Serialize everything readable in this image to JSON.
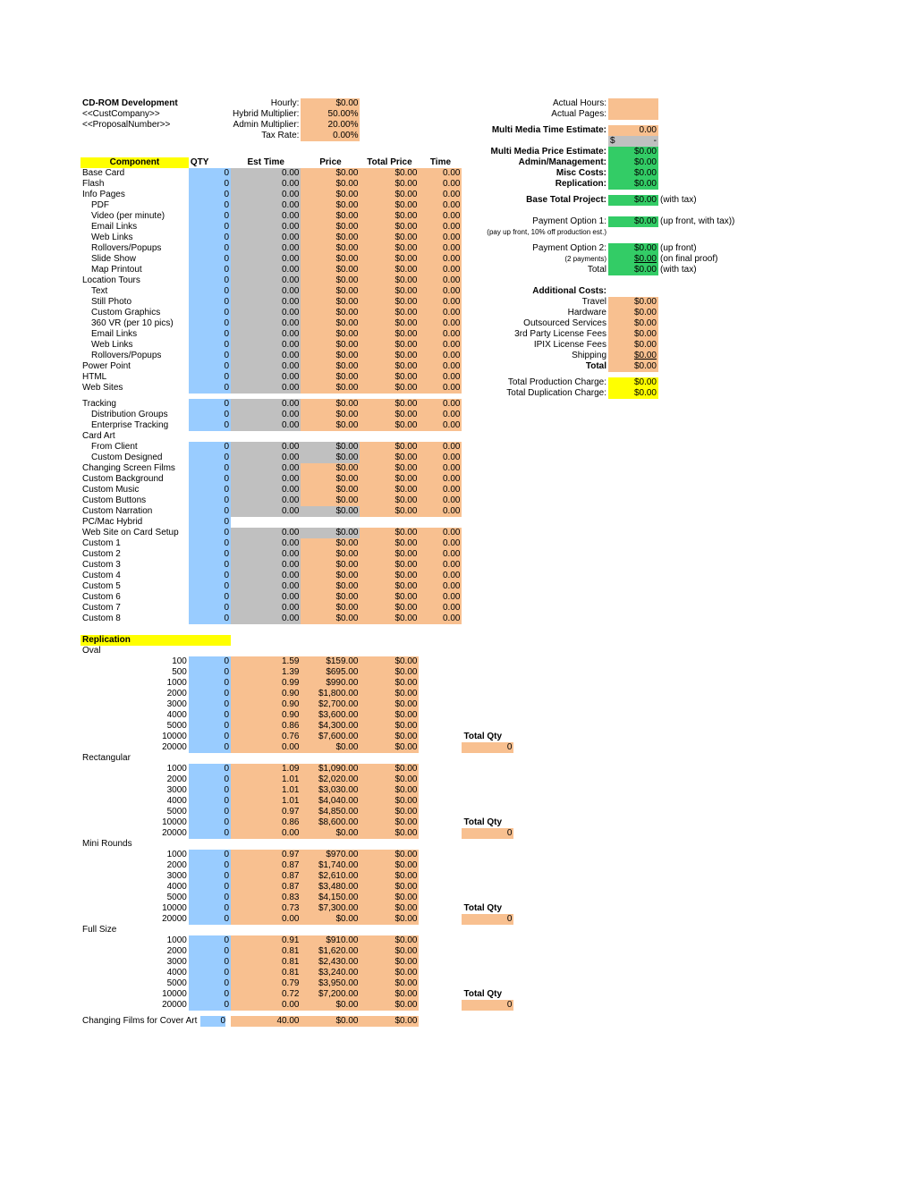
{
  "colors": {
    "yellow": "#ffff00",
    "salmon": "#f8c090",
    "blue": "#99ccff",
    "gray": "#c0c0c0",
    "green": "#33cc66",
    "white": "#ffffff"
  },
  "header": {
    "title": "CD-ROM Development",
    "cust": "<<CustCompany>>",
    "prop": "<<ProposalNumber>>",
    "labels": {
      "hourly": "Hourly:",
      "hybrid": "Hybrid Multiplier:",
      "admin": "Admin Multiplier:",
      "tax": "Tax Rate:"
    },
    "values": {
      "hourly": "$0.00",
      "hybrid": "50.00%",
      "admin": "20.00%",
      "tax": "0.00%"
    }
  },
  "columns": {
    "component": "Component",
    "qty": "QTY",
    "est": "Est Time",
    "price": "Price",
    "total": "Total Price",
    "time": "Time"
  },
  "rows": [
    {
      "n": "Base Card",
      "q": "0",
      "e": "0.00",
      "p": "$0.00",
      "t": "$0.00",
      "ti": "0.00",
      "pc": "salmon",
      "tc": "salmon"
    },
    {
      "n": "Flash",
      "q": "0",
      "e": "0.00",
      "p": "$0.00",
      "t": "$0.00",
      "ti": "0.00",
      "pc": "salmon",
      "tc": "salmon"
    },
    {
      "n": "Info Pages",
      "q": "0",
      "e": "0.00",
      "p": "$0.00",
      "t": "$0.00",
      "ti": "0.00",
      "pc": "salmon",
      "tc": "salmon"
    },
    {
      "n": "PDF",
      "i": 1,
      "q": "0",
      "e": "0.00",
      "p": "$0.00",
      "t": "$0.00",
      "ti": "0.00",
      "pc": "salmon",
      "tc": "salmon"
    },
    {
      "n": "Video (per minute)",
      "i": 1,
      "q": "0",
      "e": "0.00",
      "p": "$0.00",
      "t": "$0.00",
      "ti": "0.00",
      "pc": "salmon",
      "tc": "salmon"
    },
    {
      "n": "Email Links",
      "i": 1,
      "q": "0",
      "e": "0.00",
      "p": "$0.00",
      "t": "$0.00",
      "ti": "0.00",
      "pc": "salmon",
      "tc": "salmon"
    },
    {
      "n": "Web Links",
      "i": 1,
      "q": "0",
      "e": "0.00",
      "p": "$0.00",
      "t": "$0.00",
      "ti": "0.00",
      "pc": "salmon",
      "tc": "salmon"
    },
    {
      "n": "Rollovers/Popups",
      "i": 1,
      "q": "0",
      "e": "0.00",
      "p": "$0.00",
      "t": "$0.00",
      "ti": "0.00",
      "pc": "salmon",
      "tc": "salmon"
    },
    {
      "n": "Slide Show",
      "i": 1,
      "q": "0",
      "e": "0.00",
      "p": "$0.00",
      "t": "$0.00",
      "ti": "0.00",
      "pc": "salmon",
      "tc": "salmon"
    },
    {
      "n": "Map Printout",
      "i": 1,
      "q": "0",
      "e": "0.00",
      "p": "$0.00",
      "t": "$0.00",
      "ti": "0.00",
      "pc": "salmon",
      "tc": "salmon"
    },
    {
      "n": "Location Tours",
      "q": "0",
      "e": "0.00",
      "p": "$0.00",
      "t": "$0.00",
      "ti": "0.00",
      "pc": "salmon",
      "tc": "salmon"
    },
    {
      "n": "Text",
      "i": 1,
      "q": "0",
      "e": "0.00",
      "p": "$0.00",
      "t": "$0.00",
      "ti": "0.00",
      "pc": "salmon",
      "tc": "salmon"
    },
    {
      "n": "Still Photo",
      "i": 1,
      "q": "0",
      "e": "0.00",
      "p": "$0.00",
      "t": "$0.00",
      "ti": "0.00",
      "pc": "salmon",
      "tc": "salmon"
    },
    {
      "n": "Custom Graphics",
      "i": 1,
      "q": "0",
      "e": "0.00",
      "p": "$0.00",
      "t": "$0.00",
      "ti": "0.00",
      "pc": "salmon",
      "tc": "salmon"
    },
    {
      "n": "360 VR (per 10 pics)",
      "i": 1,
      "q": "0",
      "e": "0.00",
      "p": "$0.00",
      "t": "$0.00",
      "ti": "0.00",
      "pc": "salmon",
      "tc": "salmon"
    },
    {
      "n": "Email Links",
      "i": 1,
      "q": "0",
      "e": "0.00",
      "p": "$0.00",
      "t": "$0.00",
      "ti": "0.00",
      "pc": "salmon",
      "tc": "salmon"
    },
    {
      "n": "Web Links",
      "i": 1,
      "q": "0",
      "e": "0.00",
      "p": "$0.00",
      "t": "$0.00",
      "ti": "0.00",
      "pc": "salmon",
      "tc": "salmon"
    },
    {
      "n": "Rollovers/Popups",
      "i": 1,
      "q": "0",
      "e": "0.00",
      "p": "$0.00",
      "t": "$0.00",
      "ti": "0.00",
      "pc": "salmon",
      "tc": "salmon"
    },
    {
      "n": "Power Point",
      "q": "0",
      "e": "0.00",
      "p": "$0.00",
      "t": "$0.00",
      "ti": "0.00",
      "pc": "salmon",
      "tc": "salmon"
    },
    {
      "n": "HTML",
      "q": "0",
      "e": "0.00",
      "p": "$0.00",
      "t": "$0.00",
      "ti": "0.00",
      "pc": "salmon",
      "tc": "salmon"
    },
    {
      "n": "Web Sites",
      "q": "0",
      "e": "0.00",
      "p": "$0.00",
      "t": "$0.00",
      "ti": "0.00",
      "pc": "salmon",
      "tc": "salmon"
    },
    {
      "gap": 1
    },
    {
      "n": "Tracking",
      "q": "0",
      "e": "0.00",
      "p": "$0.00",
      "t": "$0.00",
      "ti": "0.00",
      "pc": "salmon",
      "tc": "salmon"
    },
    {
      "n": "Distribution Groups",
      "i": 1,
      "q": "0",
      "e": "0.00",
      "p": "$0.00",
      "t": "$0.00",
      "ti": "0.00",
      "pc": "salmon",
      "tc": "salmon"
    },
    {
      "n": "Enterprise Tracking",
      "i": 1,
      "q": "0",
      "e": "0.00",
      "p": "$0.00",
      "t": "$0.00",
      "ti": "0.00",
      "pc": "salmon",
      "tc": "salmon"
    },
    {
      "n": "Card Art",
      "q": "",
      "e": "",
      "p": "",
      "t": "",
      "ti": "",
      "plain": 1
    },
    {
      "n": "From Client",
      "i": 1,
      "q": "0",
      "e": "0.00",
      "p": "$0.00",
      "t": "$0.00",
      "ti": "0.00",
      "pc": "gray",
      "tc": "salmon"
    },
    {
      "n": "Custom Designed",
      "i": 1,
      "q": "0",
      "e": "0.00",
      "p": "$0.00",
      "t": "$0.00",
      "ti": "0.00",
      "pc": "gray",
      "tc": "salmon"
    },
    {
      "n": "Changing Screen Films",
      "q": "0",
      "e": "0.00",
      "p": "$0.00",
      "t": "$0.00",
      "ti": "0.00",
      "pc": "salmon",
      "tc": "salmon"
    },
    {
      "n": "Custom Background",
      "q": "0",
      "e": "0.00",
      "p": "$0.00",
      "t": "$0.00",
      "ti": "0.00",
      "pc": "salmon",
      "tc": "salmon"
    },
    {
      "n": "Custom Music",
      "q": "0",
      "e": "0.00",
      "p": "$0.00",
      "t": "$0.00",
      "ti": "0.00",
      "pc": "salmon",
      "tc": "salmon"
    },
    {
      "n": "Custom Buttons",
      "q": "0",
      "e": "0.00",
      "p": "$0.00",
      "t": "$0.00",
      "ti": "0.00",
      "pc": "salmon",
      "tc": "salmon"
    },
    {
      "n": "Custom Narration",
      "q": "0",
      "e": "0.00",
      "p": "$0.00",
      "t": "$0.00",
      "ti": "0.00",
      "pc": "gray",
      "tc": "salmon"
    },
    {
      "n": "PC/Mac Hybrid",
      "q": "0",
      "e": "",
      "p": "",
      "t": "",
      "ti": "",
      "qonly": 1
    },
    {
      "n": "Web Site on Card Setup",
      "q": "0",
      "e": "0.00",
      "p": "$0.00",
      "t": "$0.00",
      "ti": "0.00",
      "pc": "gray",
      "tc": "salmon"
    },
    {
      "n": "Custom 1",
      "q": "0",
      "e": "0.00",
      "p": "$0.00",
      "t": "$0.00",
      "ti": "0.00",
      "pc": "salmon",
      "tc": "salmon"
    },
    {
      "n": "Custom 2",
      "q": "0",
      "e": "0.00",
      "p": "$0.00",
      "t": "$0.00",
      "ti": "0.00",
      "pc": "salmon",
      "tc": "salmon"
    },
    {
      "n": "Custom 3",
      "q": "0",
      "e": "0.00",
      "p": "$0.00",
      "t": "$0.00",
      "ti": "0.00",
      "pc": "salmon",
      "tc": "salmon"
    },
    {
      "n": "Custom 4",
      "q": "0",
      "e": "0.00",
      "p": "$0.00",
      "t": "$0.00",
      "ti": "0.00",
      "pc": "salmon",
      "tc": "salmon"
    },
    {
      "n": "Custom 5",
      "q": "0",
      "e": "0.00",
      "p": "$0.00",
      "t": "$0.00",
      "ti": "0.00",
      "pc": "salmon",
      "tc": "salmon"
    },
    {
      "n": "Custom 6",
      "q": "0",
      "e": "0.00",
      "p": "$0.00",
      "t": "$0.00",
      "ti": "0.00",
      "pc": "salmon",
      "tc": "salmon"
    },
    {
      "n": "Custom 7",
      "q": "0",
      "e": "0.00",
      "p": "$0.00",
      "t": "$0.00",
      "ti": "0.00",
      "pc": "salmon",
      "tc": "salmon"
    },
    {
      "n": "Custom 8",
      "q": "0",
      "e": "0.00",
      "p": "$0.00",
      "t": "$0.00",
      "ti": "0.00",
      "pc": "salmon",
      "tc": "salmon"
    }
  ],
  "replication": {
    "heading": "Replication",
    "groups": [
      {
        "name": "Oval",
        "rows": [
          {
            "s": "100",
            "q": "0",
            "e": "1.59",
            "p": "$159.00",
            "t": "$0.00"
          },
          {
            "s": "500",
            "q": "0",
            "e": "1.39",
            "p": "$695.00",
            "t": "$0.00"
          },
          {
            "s": "1000",
            "q": "0",
            "e": "0.99",
            "p": "$990.00",
            "t": "$0.00"
          },
          {
            "s": "2000",
            "q": "0",
            "e": "0.90",
            "p": "$1,800.00",
            "t": "$0.00"
          },
          {
            "s": "3000",
            "q": "0",
            "e": "0.90",
            "p": "$2,700.00",
            "t": "$0.00"
          },
          {
            "s": "4000",
            "q": "0",
            "e": "0.90",
            "p": "$3,600.00",
            "t": "$0.00"
          },
          {
            "s": "5000",
            "q": "0",
            "e": "0.86",
            "p": "$4,300.00",
            "t": "$0.00"
          },
          {
            "s": "10000",
            "q": "0",
            "e": "0.76",
            "p": "$7,600.00",
            "t": "$0.00",
            "tq": "Total Qty"
          },
          {
            "s": "20000",
            "q": "0",
            "e": "0.00",
            "p": "$0.00",
            "t": "$0.00",
            "tv": "0"
          }
        ]
      },
      {
        "name": "Rectangular",
        "rows": [
          {
            "s": "1000",
            "q": "0",
            "e": "1.09",
            "p": "$1,090.00",
            "t": "$0.00"
          },
          {
            "s": "2000",
            "q": "0",
            "e": "1.01",
            "p": "$2,020.00",
            "t": "$0.00"
          },
          {
            "s": "3000",
            "q": "0",
            "e": "1.01",
            "p": "$3,030.00",
            "t": "$0.00"
          },
          {
            "s": "4000",
            "q": "0",
            "e": "1.01",
            "p": "$4,040.00",
            "t": "$0.00"
          },
          {
            "s": "5000",
            "q": "0",
            "e": "0.97",
            "p": "$4,850.00",
            "t": "$0.00"
          },
          {
            "s": "10000",
            "q": "0",
            "e": "0.86",
            "p": "$8,600.00",
            "t": "$0.00",
            "tq": "Total Qty"
          },
          {
            "s": "20000",
            "q": "0",
            "e": "0.00",
            "p": "$0.00",
            "t": "$0.00",
            "tv": "0"
          }
        ]
      },
      {
        "name": "Mini Rounds",
        "rows": [
          {
            "s": "1000",
            "q": "0",
            "e": "0.97",
            "p": "$970.00",
            "t": "$0.00"
          },
          {
            "s": "2000",
            "q": "0",
            "e": "0.87",
            "p": "$1,740.00",
            "t": "$0.00"
          },
          {
            "s": "3000",
            "q": "0",
            "e": "0.87",
            "p": "$2,610.00",
            "t": "$0.00"
          },
          {
            "s": "4000",
            "q": "0",
            "e": "0.87",
            "p": "$3,480.00",
            "t": "$0.00"
          },
          {
            "s": "5000",
            "q": "0",
            "e": "0.83",
            "p": "$4,150.00",
            "t": "$0.00"
          },
          {
            "s": "10000",
            "q": "0",
            "e": "0.73",
            "p": "$7,300.00",
            "t": "$0.00",
            "tq": "Total Qty"
          },
          {
            "s": "20000",
            "q": "0",
            "e": "0.00",
            "p": "$0.00",
            "t": "$0.00",
            "tv": "0"
          }
        ]
      },
      {
        "name": "Full Size",
        "rows": [
          {
            "s": "1000",
            "q": "0",
            "e": "0.91",
            "p": "$910.00",
            "t": "$0.00"
          },
          {
            "s": "2000",
            "q": "0",
            "e": "0.81",
            "p": "$1,620.00",
            "t": "$0.00"
          },
          {
            "s": "3000",
            "q": "0",
            "e": "0.81",
            "p": "$2,430.00",
            "t": "$0.00"
          },
          {
            "s": "4000",
            "q": "0",
            "e": "0.81",
            "p": "$3,240.00",
            "t": "$0.00"
          },
          {
            "s": "5000",
            "q": "0",
            "e": "0.79",
            "p": "$3,950.00",
            "t": "$0.00"
          },
          {
            "s": "10000",
            "q": "0",
            "e": "0.72",
            "p": "$7,200.00",
            "t": "$0.00",
            "tq": "Total Qty"
          },
          {
            "s": "20000",
            "q": "0",
            "e": "0.00",
            "p": "$0.00",
            "t": "$0.00",
            "tv": "0"
          }
        ]
      }
    ],
    "footer": {
      "n": "Changing Films for Cover Art",
      "q": "0",
      "e": "40.00",
      "p": "$0.00",
      "t": "$0.00"
    }
  },
  "summary": {
    "actualHoursL": "Actual Hours:",
    "actualPagesL": "Actual Pages:",
    "mmteL": "Multi Media Time Estimate:",
    "mmteV": "0.00",
    "dollar": "$",
    "dash": "-",
    "mmpeL": "Multi Media Price Estimate:",
    "mmpeV": "$0.00",
    "admL": "Admin/Management:",
    "admV": "$0.00",
    "miscL": "Misc Costs:",
    "miscV": "$0.00",
    "replL": "Replication:",
    "replV": "$0.00",
    "baseL": "Base Total Project:",
    "baseV": "$0.00",
    "baseN": "(with tax)",
    "p1L": "Payment Option 1:",
    "p1V": "$0.00",
    "p1N": "(up front, with tax))",
    "p1sub": "(pay up front, 10% off production est.)",
    "p2L": "Payment Option 2:",
    "p2V": "$0.00",
    "p2N": "(up front)",
    "p2sub": "(2 payments)",
    "p2sV": "$0.00",
    "p2sN": "(on final proof)",
    "totL": "Total",
    "totV": "$0.00",
    "totN": "(with tax)",
    "addL": "Additional Costs:",
    "addRows": [
      {
        "l": "Travel",
        "v": "$0.00"
      },
      {
        "l": "Hardware",
        "v": "$0.00"
      },
      {
        "l": "Outsourced Services",
        "v": "$0.00"
      },
      {
        "l": "3rd Party License Fees",
        "v": "$0.00"
      },
      {
        "l": "IPIX License Fees",
        "v": "$0.00"
      },
      {
        "l": "Shipping",
        "v": "$0.00",
        "u": 1
      }
    ],
    "addTotL": "Total",
    "addTotV": "$0.00",
    "tpcL": "Total Production Charge:",
    "tpcV": "$0.00",
    "tdcL": "Total Duplication Charge:",
    "tdcV": "$0.00"
  }
}
